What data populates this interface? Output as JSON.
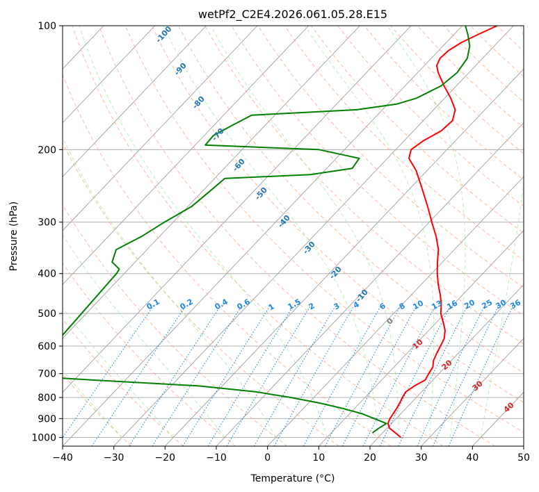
{
  "chart_data": {
    "type": "line",
    "title": "wetPf2_C2E4.2026.061.05.28.E15",
    "xlabel": "Temperature (°C)",
    "ylabel": "Pressure (hPa)",
    "xlim": [
      -40,
      50
    ],
    "ylim_pressure": [
      1050,
      100
    ],
    "x_scale": "linear",
    "y_scale": "log (skew-T)",
    "x_ticks": [
      -40,
      -30,
      -20,
      -10,
      0,
      10,
      20,
      30,
      40,
      50
    ],
    "y_ticks": [
      1000,
      900,
      800,
      700,
      600,
      500,
      400,
      300,
      200,
      100
    ],
    "grid": true,
    "series": [
      {
        "role": "temperature",
        "color": "#ff0000",
        "points": [
          {
            "p": 1000,
            "t": 24.4
          },
          {
            "p": 975,
            "t": 22.5
          },
          {
            "p": 950,
            "t": 20.5
          },
          {
            "p": 925,
            "t": 19.3
          },
          {
            "p": 900,
            "t": 18.8
          },
          {
            "p": 875,
            "t": 18.5
          },
          {
            "p": 850,
            "t": 18.2
          },
          {
            "p": 825,
            "t": 17.8
          },
          {
            "p": 800,
            "t": 17.3
          },
          {
            "p": 775,
            "t": 16.9
          },
          {
            "p": 750,
            "t": 17.5
          },
          {
            "p": 725,
            "t": 18.5
          },
          {
            "p": 700,
            "t": 18.0
          },
          {
            "p": 675,
            "t": 17.6
          },
          {
            "p": 650,
            "t": 16.5
          },
          {
            "p": 625,
            "t": 15.8
          },
          {
            "p": 600,
            "t": 15.2
          },
          {
            "p": 575,
            "t": 14.5
          },
          {
            "p": 550,
            "t": 13.2
          },
          {
            "p": 525,
            "t": 11.3
          },
          {
            "p": 500,
            "t": 9.2
          },
          {
            "p": 475,
            "t": 7.6
          },
          {
            "p": 450,
            "t": 5.6
          },
          {
            "p": 425,
            "t": 3.3
          },
          {
            "p": 400,
            "t": 1.1
          },
          {
            "p": 375,
            "t": -1.0
          },
          {
            "p": 350,
            "t": -3.1
          },
          {
            "p": 325,
            "t": -6.0
          },
          {
            "p": 300,
            "t": -9.5
          },
          {
            "p": 275,
            "t": -13.2
          },
          {
            "p": 250,
            "t": -17.4
          },
          {
            "p": 225,
            "t": -22.1
          },
          {
            "p": 210,
            "t": -25.8
          },
          {
            "p": 200,
            "t": -27.0
          },
          {
            "p": 190,
            "t": -26.2
          },
          {
            "p": 180,
            "t": -24.6
          },
          {
            "p": 170,
            "t": -24.3
          },
          {
            "p": 160,
            "t": -25.8
          },
          {
            "p": 150,
            "t": -28.8
          },
          {
            "p": 140,
            "t": -32.4
          },
          {
            "p": 130,
            "t": -36.0
          },
          {
            "p": 125,
            "t": -37.6
          },
          {
            "p": 120,
            "t": -38.3
          },
          {
            "p": 115,
            "t": -38.1
          },
          {
            "p": 110,
            "t": -37.1
          },
          {
            "p": 105,
            "t": -35.3
          },
          {
            "p": 100,
            "t": -33.2
          }
        ]
      },
      {
        "role": "dewpoint",
        "color": "#008000",
        "points": [
          {
            "p": 975,
            "t": 18.0
          },
          {
            "p": 950,
            "t": 18.4
          },
          {
            "p": 925,
            "t": 19.0
          },
          {
            "p": 900,
            "t": 15.7
          },
          {
            "p": 875,
            "t": 12.3
          },
          {
            "p": 850,
            "t": 7.6
          },
          {
            "p": 825,
            "t": 2.1
          },
          {
            "p": 800,
            "t": -4.5
          },
          {
            "p": 775,
            "t": -12.3
          },
          {
            "p": 750,
            "t": -24.5
          },
          {
            "p": 725,
            "t": -46.7
          },
          {
            "p": 710,
            "t": -60.0
          },
          {
            "p": 400,
            "t": -61.5
          },
          {
            "p": 390,
            "t": -61.8
          },
          {
            "p": 375,
            "t": -64.5
          },
          {
            "p": 350,
            "t": -66.0
          },
          {
            "p": 325,
            "t": -63.5
          },
          {
            "p": 300,
            "t": -61.7
          },
          {
            "p": 275,
            "t": -59.3
          },
          {
            "p": 250,
            "t": -58.5
          },
          {
            "p": 235,
            "t": -58.0
          },
          {
            "p": 230,
            "t": -42.0
          },
          {
            "p": 222,
            "t": -35.0
          },
          {
            "p": 210,
            "t": -35.5
          },
          {
            "p": 200,
            "t": -45.0
          },
          {
            "p": 195,
            "t": -68.0
          },
          {
            "p": 185,
            "t": -68.2
          },
          {
            "p": 175,
            "t": -66.5
          },
          {
            "p": 165,
            "t": -64.5
          },
          {
            "p": 160,
            "t": -45.0
          },
          {
            "p": 155,
            "t": -38.3
          },
          {
            "p": 150,
            "t": -35.5
          },
          {
            "p": 140,
            "t": -33.0
          },
          {
            "p": 130,
            "t": -32.3
          },
          {
            "p": 120,
            "t": -33.0
          },
          {
            "p": 112,
            "t": -34.8
          },
          {
            "p": 105,
            "t": -37.3
          },
          {
            "p": 100,
            "t": -39.4
          }
        ]
      }
    ],
    "dry_adiabat_labels": [
      "-100",
      "-90",
      "-80",
      "-70",
      "-60",
      "-50",
      "-40",
      "-30",
      "-20",
      "-10"
    ],
    "mixing_ratio_labels": [
      "0.1",
      "0.2",
      "0.4",
      "0.6",
      "1",
      "1.5",
      "2",
      "3",
      "4",
      "6",
      "8",
      "10",
      "13",
      "16",
      "20",
      "25",
      "30",
      "36"
    ],
    "moist_adiabat_labels": [
      "0",
      "10",
      "20",
      "30",
      "40"
    ],
    "colors": {
      "temperature": "#ff0000",
      "dewpoint": "#008000",
      "mixing_ratio": "#1e88e5",
      "dry_adiabat_label": "#1f77b4",
      "moist_adiabat_label": "#d62728",
      "zero_label": "#808080",
      "isotherm": "#a0a0a0",
      "dry_adiabat": "#ffa07a",
      "moist_adiabat": "#90ee90"
    }
  }
}
